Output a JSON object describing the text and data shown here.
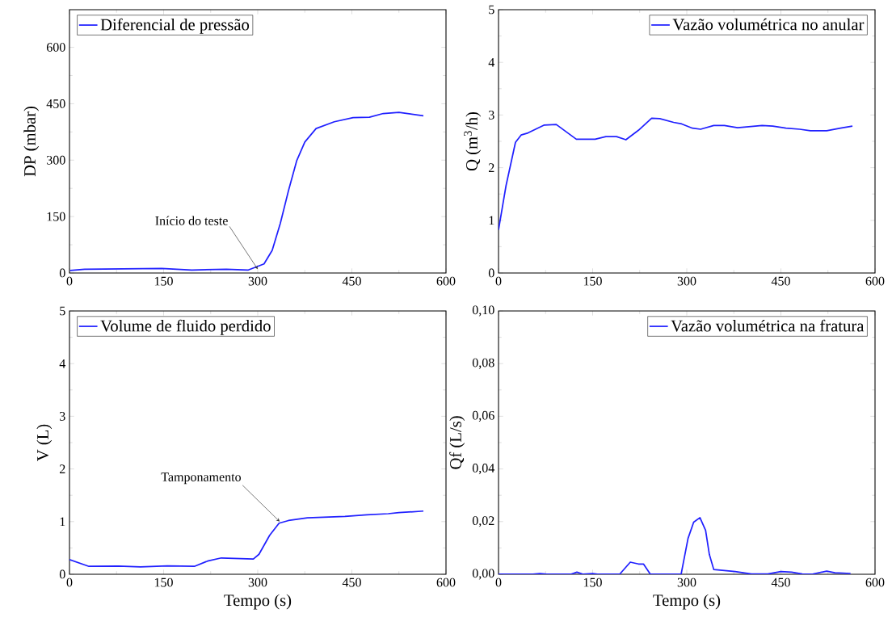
{
  "chart_data": [
    {
      "type": "line",
      "ylabel": "DP (mbar)",
      "xlim": [
        0,
        600
      ],
      "xticks": [
        0,
        150,
        300,
        450,
        600
      ],
      "ylim": [
        0,
        700
      ],
      "yticks": [
        0,
        150,
        300,
        450,
        600
      ],
      "legend": "top left",
      "series": [
        {
          "name": "Diferencial de pressão",
          "color": "#2020ff",
          "x": [
            1,
            24,
            147,
            195,
            250,
            285,
            310,
            323,
            336,
            349,
            362,
            375,
            393,
            422,
            452,
            478,
            500,
            525,
            564
          ],
          "values": [
            6.5,
            10,
            12,
            8,
            10,
            8,
            24,
            60,
            132,
            219,
            298,
            348,
            384,
            402,
            413,
            414,
            424,
            427,
            418
          ]
        }
      ],
      "annotations": [
        {
          "text": "Início do teste",
          "x": 300,
          "y": 10
        }
      ]
    },
    {
      "type": "line",
      "ylabel": "Q (m$^{3}$/h)",
      "xlim": [
        0,
        600
      ],
      "xticks": [
        0,
        150,
        300,
        450,
        600
      ],
      "ylim": [
        0,
        5
      ],
      "yticks": [
        0,
        1,
        2,
        3,
        4,
        5
      ],
      "legend": "top right",
      "series": [
        {
          "name": "Vazão volumétrica no anular",
          "color": "#2020ff",
          "x": [
            0,
            12,
            27,
            36,
            47,
            73,
            92,
            124,
            154,
            171,
            188,
            203,
            223,
            244,
            257,
            279,
            292,
            309,
            322,
            343,
            360,
            381,
            420,
            437,
            458,
            480,
            497,
            523,
            545,
            564
          ],
          "values": [
            0.82,
            1.66,
            2.48,
            2.62,
            2.66,
            2.81,
            2.82,
            2.54,
            2.54,
            2.59,
            2.59,
            2.53,
            2.71,
            2.94,
            2.93,
            2.86,
            2.83,
            2.75,
            2.73,
            2.8,
            2.8,
            2.76,
            2.8,
            2.79,
            2.75,
            2.73,
            2.7,
            2.7,
            2.75,
            2.79
          ]
        }
      ]
    },
    {
      "type": "line",
      "xlabel": "Tempo (s)",
      "ylabel": "V (L)",
      "xlim": [
        0,
        600
      ],
      "xticks": [
        0,
        150,
        300,
        450,
        600
      ],
      "ylim": [
        0,
        5
      ],
      "yticks": [
        0,
        1,
        2,
        3,
        4,
        5
      ],
      "legend": "top left",
      "series": [
        {
          "name": "Volume de fluido perdido",
          "color": "#2020ff",
          "x": [
            0,
            31,
            78,
            113,
            156,
            199,
            220,
            242,
            293,
            302,
            319,
            334,
            349,
            379,
            439,
            474,
            508,
            525,
            564
          ],
          "values": [
            0.28,
            0.15,
            0.155,
            0.14,
            0.16,
            0.15,
            0.25,
            0.31,
            0.29,
            0.38,
            0.74,
            0.97,
            1.02,
            1.07,
            1.1,
            1.13,
            1.15,
            1.17,
            1.2
          ]
        }
      ],
      "annotations": [
        {
          "text": "Tamponamento",
          "x": 335,
          "y": 1.0
        }
      ]
    },
    {
      "type": "line",
      "xlabel": "Tempo (s)",
      "ylabel": "Qf (L/s)",
      "xlim": [
        0,
        600
      ],
      "xticks": [
        0,
        150,
        300,
        450,
        600
      ],
      "ylim": [
        0,
        0.1
      ],
      "yticks": [
        {
          "value": 0,
          "label": "0,00"
        },
        {
          "value": 0.02,
          "label": "0,02"
        },
        {
          "value": 0.04,
          "label": "0,04"
        },
        {
          "value": 0.06,
          "label": "0,06"
        },
        {
          "value": 0.08,
          "label": "0,08"
        },
        {
          "value": 0.1,
          "label": "0,10"
        }
      ],
      "legend": "top right",
      "series": [
        {
          "name": "Vazão volumétrica na fratura",
          "color": "#2020ff",
          "x": [
            0,
            55,
            66,
            77,
            115,
            125,
            135,
            150,
            160,
            193,
            210,
            223,
            231,
            242,
            291,
            302,
            311,
            321,
            330,
            336,
            343,
            377,
            403,
            429,
            450,
            467,
            484,
            499,
            523,
            536,
            561
          ],
          "values": [
            0,
            0,
            0.0003,
            0,
            0,
            0.0008,
            0,
            0.0003,
            0,
            0,
            0.0046,
            0.0039,
            0.0039,
            0,
            0,
            0.0136,
            0.0198,
            0.0215,
            0.0167,
            0.0075,
            0.0018,
            0.001,
            0.0001,
            0.0001,
            0.001,
            0.0008,
            0.0001,
            0,
            0.0012,
            0.0006,
            0.0003
          ]
        }
      ]
    }
  ]
}
